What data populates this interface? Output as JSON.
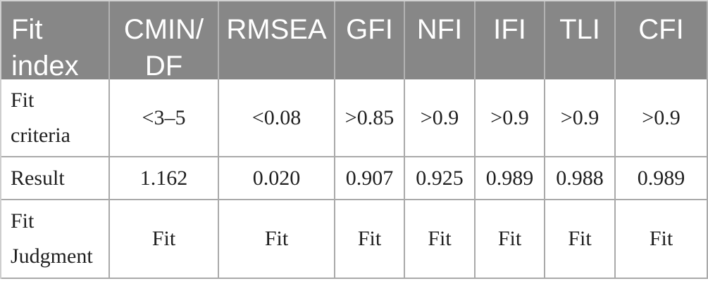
{
  "table": {
    "title_semantic": "Model fit indices table",
    "header": {
      "cells": [
        {
          "label": "Fit index",
          "lines": [
            "Fit",
            "index"
          ]
        },
        {
          "label": "CMIN/DF",
          "lines": [
            "CMIN/",
            "DF"
          ]
        },
        {
          "label": "RMSEA",
          "lines": [
            "RMSEA"
          ]
        },
        {
          "label": "GFI",
          "lines": [
            "GFI"
          ]
        },
        {
          "label": "NFI",
          "lines": [
            "NFI"
          ]
        },
        {
          "label": "IFI",
          "lines": [
            "IFI"
          ]
        },
        {
          "label": "TLI",
          "lines": [
            "TLI"
          ]
        },
        {
          "label": "CFI",
          "lines": [
            "CFI"
          ]
        }
      ]
    },
    "rows": [
      {
        "label": "Fit criteria",
        "label_lines": [
          "Fit",
          "criteria"
        ],
        "values": [
          "<3–5",
          "<0.08",
          ">0.85",
          ">0.9",
          ">0.9",
          ">0.9",
          ">0.9"
        ]
      },
      {
        "label": "Result",
        "label_lines": [
          "Result"
        ],
        "values": [
          "1.162",
          "0.020",
          "0.907",
          "0.925",
          "0.989",
          "0.988",
          "0.989"
        ]
      },
      {
        "label": "Fit Judgment",
        "label_lines": [
          "Fit",
          "Judgment"
        ],
        "values": [
          "Fit",
          "Fit",
          "Fit",
          "Fit",
          "Fit",
          "Fit",
          "Fit"
        ]
      }
    ]
  },
  "colors": {
    "header_bg": "#878787",
    "header_text": "#ffffff",
    "header_separator": "#b2b2b2",
    "body_text": "#1f1f1f",
    "grid_line": "#a9a9a9",
    "page_bg": "#ffffff"
  }
}
